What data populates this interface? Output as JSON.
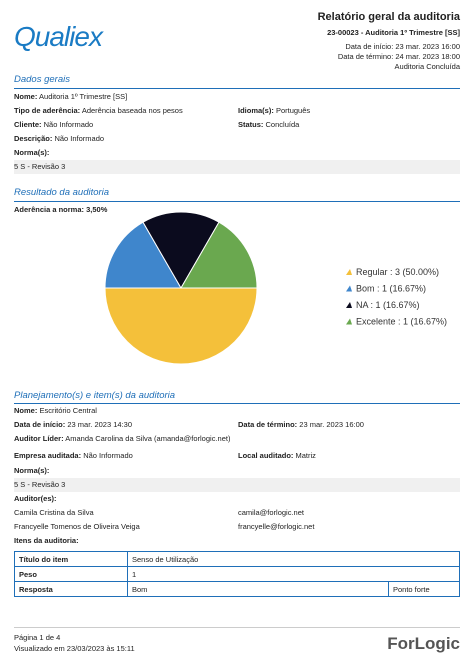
{
  "header": {
    "logo": "Qualiex",
    "title": "Relatório geral da auditoria",
    "code": "23-00023 - Auditoria 1º Trimestre [SS]",
    "start": "Data de início: 23 mar. 2023 16:00",
    "end": "Data de término: 24 mar. 2023 18:00",
    "status": "Auditoria Concluída"
  },
  "general": {
    "heading": "Dados gerais",
    "fields": [
      {
        "label": "Nome:",
        "value": "Auditoria 1º Trimestre [SS]"
      },
      {
        "label": "Tipo de aderência:",
        "value": "Aderência baseada nos pesos"
      },
      {
        "label": "Idioma(s):",
        "value": "Português"
      },
      {
        "label": "Cliente:",
        "value": "Não Informado"
      },
      {
        "label": "Status:",
        "value": "Concluída"
      },
      {
        "label": "Descrição:",
        "value": "Não Informado"
      },
      {
        "label": "Norma(s):",
        "value": "5 S - Revisão 3"
      }
    ]
  },
  "result": {
    "heading": "Resultado da auditoria",
    "adherence": "Aderência a norma: 3,50%",
    "chart": {
      "type": "pie",
      "categories": [
        "Regular",
        "Bom",
        "NA",
        "Excelente"
      ],
      "values": [
        3,
        1,
        1,
        1
      ],
      "legend": [
        "Regular : 3 (50.00%)",
        "Bom : 1 (16.67%)",
        "NA : 1 (16.67%)",
        "Excelente : 1 (16.67%)"
      ],
      "colors": [
        "#f4c03a",
        "#3f86cc",
        "#0b0b1e",
        "#6aa84f"
      ]
    }
  },
  "planning": {
    "heading": "Planejamento(s) e item(s) da auditoria",
    "fields": [
      {
        "label": "Nome:",
        "value": "Escritório Central"
      },
      {
        "label": "Data de início:",
        "value": "23 mar. 2023 14:30"
      },
      {
        "label": "Data de término:",
        "value": "23 mar. 2023 16:00"
      },
      {
        "label": "Auditor Líder:",
        "value": "Amanda Carolina da Silva (amanda@forlogic.net)"
      },
      {
        "label": "Empresa auditada:",
        "value": "Não Informado"
      },
      {
        "label": "Local auditado:",
        "value": "Matriz"
      },
      {
        "label": "Norma(s):",
        "value": "5 S - Revisão 3"
      }
    ],
    "auditors_label": "Auditor(es):",
    "auditors": [
      [
        "Camila Cristina da Silva",
        "camila@forlogic.net"
      ],
      [
        "Francyelle Tomenos de Oliveira Veiga",
        "francyelle@forlogic.net"
      ]
    ],
    "items_label": "Itens da auditoria:",
    "table": [
      [
        "Título do item",
        "Senso de Utilização"
      ],
      [
        "Peso",
        "1"
      ],
      [
        "Resposta",
        "Bom",
        "Ponto forte"
      ]
    ]
  },
  "footer": {
    "page": "Página 1 de 4",
    "viewed": "Visualizado em 23/03/2023 às 15:11",
    "brand": "ForLogic"
  }
}
